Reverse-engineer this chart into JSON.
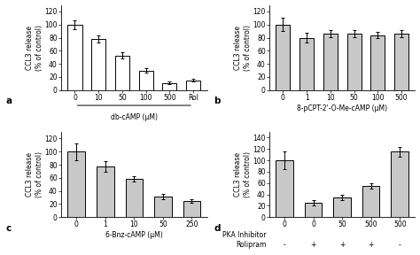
{
  "panel_a": {
    "categories": [
      "0",
      "10",
      "50",
      "100",
      "500",
      "Rol"
    ],
    "values": [
      100,
      78,
      53,
      30,
      11,
      15
    ],
    "errors": [
      7,
      5,
      5,
      4,
      2,
      2
    ],
    "xlabel": "db-cAMP (μM)",
    "ylabel": "CCL3 release\n(% of control)",
    "ylim": [
      0,
      130
    ],
    "yticks": [
      0,
      20,
      40,
      60,
      80,
      100,
      120
    ],
    "label": "a",
    "bar_color": "white",
    "bar_edgecolor": "black"
  },
  "panel_b": {
    "categories": [
      "0",
      "1",
      "10",
      "50",
      "100",
      "500"
    ],
    "values": [
      100,
      80,
      86,
      86,
      84,
      86
    ],
    "errors": [
      10,
      7,
      5,
      5,
      5,
      5
    ],
    "xlabel": "8-pCPT-2'-O-Me-cAMP (μM)",
    "ylabel": "CCL3 release\n(% of control)",
    "ylim": [
      0,
      130
    ],
    "yticks": [
      0,
      20,
      40,
      60,
      80,
      100,
      120
    ],
    "label": "b",
    "bar_color": "#c8c8c8",
    "bar_edgecolor": "black"
  },
  "panel_c": {
    "categories": [
      "0",
      "1",
      "10",
      "50",
      "250"
    ],
    "values": [
      100,
      77,
      59,
      32,
      25
    ],
    "errors": [
      13,
      8,
      4,
      4,
      3
    ],
    "xlabel": "6-Bnz-cAMP (μM)",
    "ylabel": "CCL3 release\n(% of control)",
    "ylim": [
      0,
      130
    ],
    "yticks": [
      0,
      20,
      40,
      60,
      80,
      100,
      120
    ],
    "label": "c",
    "bar_color": "#c8c8c8",
    "bar_edgecolor": "black"
  },
  "panel_d": {
    "pka_vals": [
      "0",
      "0",
      "50",
      "500",
      "500"
    ],
    "rolipram_vals": [
      "-",
      "+",
      "+",
      "+",
      "-"
    ],
    "values": [
      100,
      25,
      35,
      55,
      115
    ],
    "errors": [
      15,
      5,
      5,
      5,
      8
    ],
    "xlabel_pka": "PKA Inhibitor",
    "xlabel_rol": "Rolipram",
    "ylabel": "CCL3 release\n(% of control)",
    "ylim": [
      0,
      150
    ],
    "yticks": [
      0,
      20,
      40,
      60,
      80,
      100,
      120,
      140
    ],
    "label": "d",
    "bar_color": "#c8c8c8",
    "bar_edgecolor": "black"
  }
}
